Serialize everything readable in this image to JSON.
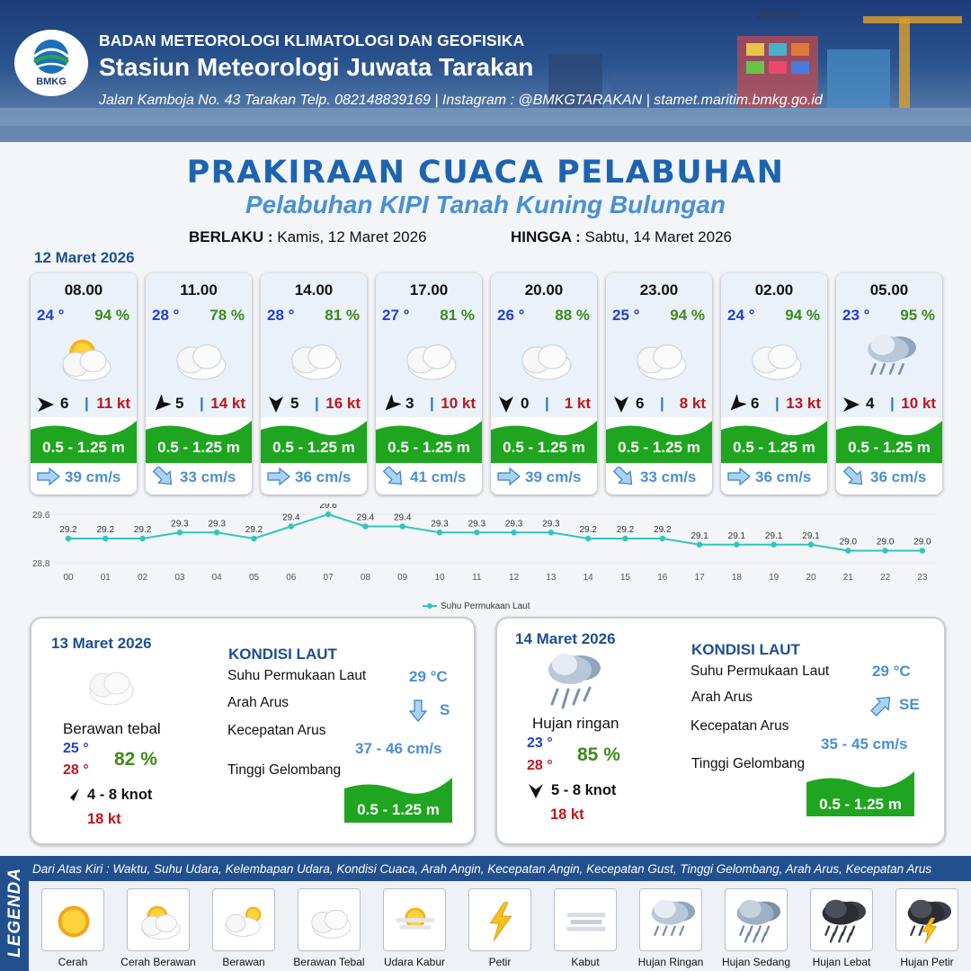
{
  "header": {
    "logo_text": "BMKG",
    "org_name": "BADAN METEOROLOGI KLIMATOLOGI DAN GEOFISIKA",
    "station_name": "Stasiun Meteorologi Juwata Tarakan",
    "address": "Jalan Kamboja No. 43 Tarakan  Telp. 082148839169 | Instagram : @BMKGTARAKAN | stamet.maritim.bmkg.go.id"
  },
  "title": "PRAKIRAAN CUACA PELABUHAN",
  "subtitle": "Pelabuhan KIPI Tanah Kuning Bulungan",
  "validity": {
    "from_label": "BERLAKU :",
    "from_value": "Kamis, 12 Maret 2026",
    "to_label": "HINGGA :",
    "to_value": "Sabtu, 14 Maret 2026"
  },
  "day1": {
    "date": "12 Maret 2026",
    "forecasts": [
      {
        "time": "08.00",
        "temp": "24 °",
        "hum": "94 %",
        "weather_icon": "cerah-berawan-icon",
        "wind_dir_icon": "arrow-east-icon",
        "wind": "6",
        "gust": "11 kt",
        "wave": "0.5 - 1.25 m",
        "current_dir_icon": "arrow-east-icon",
        "current": "39 cm/s"
      },
      {
        "time": "11.00",
        "temp": "28 °",
        "hum": "78 %",
        "weather_icon": "berawan-tebal-icon",
        "wind_dir_icon": "arrow-southwest-icon",
        "wind": "5",
        "gust": "14 kt",
        "wave": "0.5 - 1.25 m",
        "current_dir_icon": "arrow-southeast-icon",
        "current": "33 cm/s"
      },
      {
        "time": "14.00",
        "temp": "28 °",
        "hum": "81 %",
        "weather_icon": "berawan-tebal-icon",
        "wind_dir_icon": "arrow-south-icon",
        "wind": "5",
        "gust": "16 kt",
        "wave": "0.5 - 1.25 m",
        "current_dir_icon": "arrow-east-icon",
        "current": "36 cm/s"
      },
      {
        "time": "17.00",
        "temp": "27 °",
        "hum": "81 %",
        "weather_icon": "berawan-tebal-icon",
        "wind_dir_icon": "arrow-southwest-icon",
        "wind": "3",
        "gust": "10 kt",
        "wave": "0.5 - 1.25 m",
        "current_dir_icon": "arrow-southeast-icon",
        "current": "41 cm/s"
      },
      {
        "time": "20.00",
        "temp": "26 °",
        "hum": "88 %",
        "weather_icon": "berawan-tebal-icon",
        "wind_dir_icon": "arrow-south-icon",
        "wind": "0",
        "gust": "1 kt",
        "wave": "0.5 - 1.25 m",
        "current_dir_icon": "arrow-east-icon",
        "current": "39 cm/s"
      },
      {
        "time": "23.00",
        "temp": "25 °",
        "hum": "94 %",
        "weather_icon": "berawan-tebal-icon",
        "wind_dir_icon": "arrow-south-icon",
        "wind": "6",
        "gust": "8 kt",
        "wave": "0.5 - 1.25 m",
        "current_dir_icon": "arrow-southeast-icon",
        "current": "33 cm/s"
      },
      {
        "time": "02.00",
        "temp": "24 °",
        "hum": "94 %",
        "weather_icon": "berawan-tebal-icon",
        "wind_dir_icon": "arrow-southwest-icon",
        "wind": "6",
        "gust": "13 kt",
        "wave": "0.5 - 1.25 m",
        "current_dir_icon": "arrow-east-icon",
        "current": "36 cm/s"
      },
      {
        "time": "05.00",
        "temp": "23 °",
        "hum": "95 %",
        "weather_icon": "hujan-ringan-icon",
        "wind_dir_icon": "arrow-east-icon",
        "wind": "4",
        "gust": "10 kt",
        "wave": "0.5 - 1.25 m",
        "current_dir_icon": "arrow-southeast-icon",
        "current": "36 cm/s"
      }
    ]
  },
  "chart_data": {
    "type": "line",
    "x": [
      "00",
      "01",
      "02",
      "03",
      "04",
      "05",
      "06",
      "07",
      "08",
      "09",
      "10",
      "11",
      "12",
      "13",
      "14",
      "15",
      "16",
      "17",
      "18",
      "19",
      "20",
      "21",
      "22",
      "23"
    ],
    "series": [
      {
        "name": "Suhu Permukaan Laut",
        "values": [
          29.2,
          29.2,
          29.2,
          29.3,
          29.3,
          29.2,
          29.4,
          29.6,
          29.4,
          29.4,
          29.3,
          29.3,
          29.3,
          29.3,
          29.2,
          29.2,
          29.2,
          29.1,
          29.1,
          29.1,
          29.1,
          29.0,
          29.0,
          29.0
        ]
      }
    ],
    "ylim": [
      28.8,
      29.6
    ],
    "y_ticks": [
      "29.6",
      "28.8"
    ],
    "legend": "bottom",
    "color": "#2ec6be"
  },
  "day2": {
    "date": "13 Maret 2026",
    "weather_icon": "berawan-tebal-icon",
    "condition": "Berawan tebal",
    "tmin": "25 °",
    "tmax": "28 °",
    "hum": "82 %",
    "wind_dir_icon": "arrow-southwest-icon",
    "wind": "4  - 8 knot",
    "gust": "18 kt",
    "kondisi_title": "KONDISI LAUT",
    "sst_label": "Suhu Permukaan Laut",
    "sst": "29 °C",
    "current_dir_label": "Arah Arus",
    "current_dir_icon": "arrow-south-icon",
    "current_dir": "S",
    "current_speed_label": "Kecepatan Arus",
    "current_speed": "37 - 46 cm/s",
    "wave_label": "Tinggi Gelombang",
    "wave": "0.5 - 1.25 m"
  },
  "day3": {
    "date": "14 Maret 2026",
    "weather_icon": "hujan-ringan-icon",
    "condition": "Hujan ringan",
    "tmin": "23 °",
    "tmax": "28 °",
    "hum": "85 %",
    "wind_dir_icon": "arrow-south-icon",
    "wind": "5  - 8 knot",
    "gust": "18 kt",
    "kondisi_title": "KONDISI LAUT",
    "sst_label": "Suhu Permukaan Laut",
    "sst": "29 °C",
    "current_dir_label": "Arah Arus",
    "current_dir_icon": "arrow-southeast-icon",
    "current_dir": "SE",
    "current_speed_label": "Kecepatan Arus",
    "current_speed": "35 - 45 cm/s",
    "wave_label": "Tinggi Gelombang",
    "wave": "0.5 - 1.25 m"
  },
  "legend": {
    "title": "LEGENDA",
    "description": "Dari Atas Kiri : Waktu, Suhu Udara, Kelembapan Udara, Kondisi Cuaca, Arah Angin, Kecepatan Angin, Kecepatan Gust, Tinggi Gelombang, Arah Arus, Kecepatan Arus",
    "items": [
      {
        "label": "Cerah",
        "icon": "cerah-icon"
      },
      {
        "label": "Cerah Berawan",
        "icon": "cerah-berawan-icon"
      },
      {
        "label": "Berawan",
        "icon": "berawan-icon"
      },
      {
        "label": "Berawan Tebal",
        "icon": "berawan-tebal-icon"
      },
      {
        "label": "Udara Kabur",
        "icon": "udara-kabur-icon"
      },
      {
        "label": "Petir",
        "icon": "petir-icon"
      },
      {
        "label": "Kabut",
        "icon": "kabut-icon"
      },
      {
        "label": "Hujan Ringan",
        "icon": "hujan-ringan-icon"
      },
      {
        "label": "Hujan Sedang",
        "icon": "hujan-sedang-icon"
      },
      {
        "label": "Hujan Lebat",
        "icon": "hujan-lebat-icon"
      },
      {
        "label": "Hujan Petir",
        "icon": "hujan-petir-icon"
      }
    ]
  },
  "colors": {
    "title_blue": "#1d64b0",
    "temp_blue": "#2040d8",
    "humidity_green": "#3e8a1a",
    "gust_red": "#c0161b",
    "wave_green": "#1fa51f",
    "current_blue": "#4a8fd3",
    "legend_bg": "#22508f"
  }
}
